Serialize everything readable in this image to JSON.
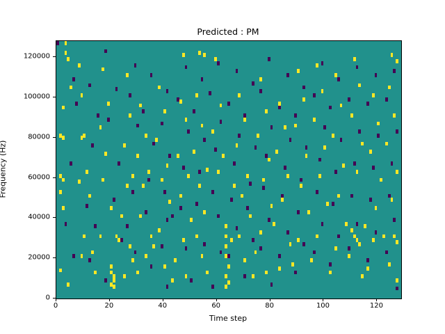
{
  "title": "Predicted : PM",
  "chart_data": {
    "type": "heatmap",
    "title": "Predicted : PM",
    "xlabel": "Time step",
    "ylabel": "Frequency (Hz)",
    "xlim": [
      0,
      129
    ],
    "ylim": [
      0,
      128000
    ],
    "x_ticks": [
      0,
      20,
      40,
      60,
      80,
      100,
      120
    ],
    "y_ticks": [
      0,
      20000,
      40000,
      60000,
      80000,
      100000,
      120000
    ],
    "grid": false,
    "legend": "none",
    "freq_bin_hz": 1000,
    "colors": {
      "background": "#21918c",
      "high": "#fde725",
      "low": "#440154"
    },
    "yellow_points": [
      [
        3,
        126
      ],
      [
        3,
        121
      ],
      [
        4,
        118
      ],
      [
        5,
        104
      ],
      [
        2,
        94
      ],
      [
        1,
        80
      ],
      [
        2,
        79
      ],
      [
        1,
        60
      ],
      [
        2,
        58
      ],
      [
        1,
        52
      ],
      [
        2,
        44
      ],
      [
        1,
        13
      ],
      [
        4,
        6
      ],
      [
        8,
        115
      ],
      [
        9,
        100
      ],
      [
        10,
        80
      ],
      [
        9,
        79
      ],
      [
        11,
        62
      ],
      [
        8,
        57
      ],
      [
        12,
        50
      ],
      [
        10,
        30
      ],
      [
        13,
        22
      ],
      [
        9,
        20
      ],
      [
        14,
        12
      ],
      [
        17,
        113
      ],
      [
        19,
        96
      ],
      [
        16,
        84
      ],
      [
        18,
        71
      ],
      [
        17,
        58
      ],
      [
        20,
        44
      ],
      [
        16,
        30
      ],
      [
        20,
        15
      ],
      [
        20,
        12
      ],
      [
        21,
        10
      ],
      [
        21,
        8
      ],
      [
        20,
        6
      ],
      [
        21,
        5
      ],
      [
        22,
        30
      ],
      [
        23,
        28
      ],
      [
        26,
        110
      ],
      [
        27,
        90
      ],
      [
        25,
        75
      ],
      [
        28,
        60
      ],
      [
        26,
        55
      ],
      [
        24,
        40
      ],
      [
        27,
        25
      ],
      [
        28,
        18
      ],
      [
        25,
        10
      ],
      [
        31,
        95
      ],
      [
        33,
        80
      ],
      [
        30,
        70
      ],
      [
        34,
        62
      ],
      [
        32,
        55
      ],
      [
        31,
        40
      ],
      [
        35,
        30
      ],
      [
        33,
        20
      ],
      [
        30,
        12
      ],
      [
        38,
        104
      ],
      [
        40,
        92
      ],
      [
        37,
        78
      ],
      [
        41,
        65
      ],
      [
        39,
        58
      ],
      [
        42,
        47
      ],
      [
        38,
        33
      ],
      [
        36,
        25
      ],
      [
        40,
        15
      ],
      [
        43,
        8
      ],
      [
        47,
        120
      ],
      [
        46,
        97
      ],
      [
        48,
        88
      ],
      [
        45,
        70
      ],
      [
        49,
        60
      ],
      [
        46,
        50
      ],
      [
        50,
        38
      ],
      [
        47,
        28
      ],
      [
        44,
        18
      ],
      [
        48,
        10
      ],
      [
        53,
        121
      ],
      [
        55,
        120
      ],
      [
        52,
        100
      ],
      [
        54,
        85
      ],
      [
        51,
        72
      ],
      [
        56,
        63
      ],
      [
        53,
        55
      ],
      [
        55,
        42
      ],
      [
        52,
        30
      ],
      [
        54,
        20
      ],
      [
        56,
        12
      ],
      [
        59,
        118
      ],
      [
        61,
        95
      ],
      [
        58,
        82
      ],
      [
        62,
        70
      ],
      [
        60,
        62
      ],
      [
        63,
        35
      ],
      [
        63,
        30
      ],
      [
        63,
        25
      ],
      [
        63,
        20
      ],
      [
        64,
        15
      ],
      [
        63,
        10
      ],
      [
        64,
        7
      ],
      [
        63,
        5
      ],
      [
        65,
        28
      ],
      [
        66,
        55
      ],
      [
        68,
        100
      ],
      [
        70,
        88
      ],
      [
        67,
        75
      ],
      [
        71,
        60
      ],
      [
        69,
        50
      ],
      [
        72,
        40
      ],
      [
        68,
        30
      ],
      [
        70,
        18
      ],
      [
        73,
        10
      ],
      [
        76,
        108
      ],
      [
        78,
        92
      ],
      [
        75,
        80
      ],
      [
        79,
        68
      ],
      [
        77,
        58
      ],
      [
        80,
        45
      ],
      [
        76,
        32
      ],
      [
        74,
        22
      ],
      [
        78,
        12
      ],
      [
        83,
        96
      ],
      [
        85,
        84
      ],
      [
        82,
        72
      ],
      [
        86,
        60
      ],
      [
        84,
        48
      ],
      [
        81,
        36
      ],
      [
        87,
        26
      ],
      [
        83,
        14
      ],
      [
        90,
        112
      ],
      [
        92,
        98
      ],
      [
        89,
        85
      ],
      [
        93,
        70
      ],
      [
        91,
        55
      ],
      [
        94,
        42
      ],
      [
        90,
        28
      ],
      [
        88,
        16
      ],
      [
        97,
        115
      ],
      [
        99,
        102
      ],
      [
        96,
        88
      ],
      [
        100,
        74
      ],
      [
        98,
        60
      ],
      [
        101,
        46
      ],
      [
        97,
        30
      ],
      [
        95,
        18
      ],
      [
        104,
        110
      ],
      [
        106,
        95
      ],
      [
        103,
        80
      ],
      [
        107,
        65
      ],
      [
        105,
        50
      ],
      [
        108,
        36
      ],
      [
        104,
        24
      ],
      [
        102,
        12
      ],
      [
        111,
        118
      ],
      [
        113,
        105
      ],
      [
        110,
        90
      ],
      [
        114,
        76
      ],
      [
        112,
        62
      ],
      [
        110,
        33
      ],
      [
        111,
        30
      ],
      [
        112,
        28
      ],
      [
        113,
        26
      ],
      [
        115,
        35
      ],
      [
        109,
        20
      ],
      [
        114,
        10
      ],
      [
        118,
        100
      ],
      [
        120,
        86
      ],
      [
        117,
        72
      ],
      [
        121,
        58
      ],
      [
        119,
        44
      ],
      [
        122,
        30
      ],
      [
        118,
        28
      ],
      [
        116,
        14
      ],
      [
        125,
        120
      ],
      [
        127,
        117
      ],
      [
        124,
        104
      ],
      [
        126,
        90
      ],
      [
        123,
        76
      ],
      [
        127,
        62
      ],
      [
        125,
        48
      ],
      [
        126,
        30
      ],
      [
        127,
        27
      ],
      [
        124,
        16
      ],
      [
        127,
        8
      ]
    ],
    "purple_points": [
      [
        0,
        126
      ],
      [
        6,
        108
      ],
      [
        7,
        96
      ],
      [
        5,
        66
      ],
      [
        3,
        36
      ],
      [
        6,
        20
      ],
      [
        12,
        105
      ],
      [
        15,
        90
      ],
      [
        13,
        75
      ],
      [
        11,
        45
      ],
      [
        14,
        35
      ],
      [
        12,
        18
      ],
      [
        18,
        122
      ],
      [
        22,
        103
      ],
      [
        19,
        88
      ],
      [
        23,
        66
      ],
      [
        21,
        48
      ],
      [
        24,
        28
      ],
      [
        18,
        8
      ],
      [
        29,
        115
      ],
      [
        27,
        100
      ],
      [
        30,
        85
      ],
      [
        28,
        52
      ],
      [
        26,
        35
      ],
      [
        29,
        22
      ],
      [
        35,
        110
      ],
      [
        32,
        92
      ],
      [
        36,
        76
      ],
      [
        34,
        58
      ],
      [
        33,
        42
      ],
      [
        35,
        15
      ],
      [
        41,
        102
      ],
      [
        39,
        86
      ],
      [
        42,
        70
      ],
      [
        40,
        52
      ],
      [
        41,
        38
      ],
      [
        43,
        40
      ],
      [
        39,
        25
      ],
      [
        41,
        5
      ],
      [
        48,
        114
      ],
      [
        45,
        98
      ],
      [
        49,
        82
      ],
      [
        47,
        64
      ],
      [
        46,
        44
      ],
      [
        48,
        24
      ],
      [
        54,
        108
      ],
      [
        51,
        92
      ],
      [
        55,
        78
      ],
      [
        53,
        62
      ],
      [
        52,
        46
      ],
      [
        55,
        26
      ],
      [
        50,
        8
      ],
      [
        60,
        116
      ],
      [
        57,
        101
      ],
      [
        61,
        87
      ],
      [
        59,
        73
      ],
      [
        58,
        52
      ],
      [
        60,
        40
      ],
      [
        61,
        22
      ],
      [
        58,
        5
      ],
      [
        67,
        112
      ],
      [
        64,
        96
      ],
      [
        68,
        80
      ],
      [
        66,
        66
      ],
      [
        65,
        48
      ],
      [
        67,
        34
      ],
      [
        64,
        20
      ],
      [
        73,
        106
      ],
      [
        70,
        90
      ],
      [
        74,
        74
      ],
      [
        72,
        56
      ],
      [
        71,
        44
      ],
      [
        73,
        28
      ],
      [
        70,
        10
      ],
      [
        79,
        118
      ],
      [
        76,
        102
      ],
      [
        80,
        84
      ],
      [
        78,
        70
      ],
      [
        77,
        54
      ],
      [
        79,
        38
      ],
      [
        76,
        24
      ],
      [
        80,
        6
      ],
      [
        86,
        110
      ],
      [
        83,
        94
      ],
      [
        87,
        78
      ],
      [
        85,
        64
      ],
      [
        84,
        50
      ],
      [
        86,
        32
      ],
      [
        83,
        20
      ],
      [
        92,
        104
      ],
      [
        89,
        90
      ],
      [
        93,
        74
      ],
      [
        91,
        58
      ],
      [
        90,
        42
      ],
      [
        92,
        26
      ],
      [
        89,
        12
      ],
      [
        99,
        116
      ],
      [
        96,
        100
      ],
      [
        100,
        84
      ],
      [
        98,
        68
      ],
      [
        97,
        52
      ],
      [
        99,
        36
      ],
      [
        96,
        22
      ],
      [
        105,
        108
      ],
      [
        102,
        94
      ],
      [
        106,
        78
      ],
      [
        104,
        62
      ],
      [
        103,
        46
      ],
      [
        105,
        30
      ],
      [
        102,
        16
      ],
      [
        112,
        114
      ],
      [
        109,
        98
      ],
      [
        113,
        82
      ],
      [
        111,
        66
      ],
      [
        110,
        50
      ],
      [
        112,
        36
      ],
      [
        109,
        24
      ],
      [
        119,
        110
      ],
      [
        116,
        96
      ],
      [
        120,
        80
      ],
      [
        118,
        64
      ],
      [
        117,
        48
      ],
      [
        119,
        32
      ],
      [
        116,
        18
      ],
      [
        126,
        112
      ],
      [
        123,
        98
      ],
      [
        127,
        82
      ],
      [
        125,
        66
      ],
      [
        124,
        50
      ],
      [
        126,
        38
      ],
      [
        123,
        22
      ],
      [
        127,
        4
      ]
    ]
  }
}
